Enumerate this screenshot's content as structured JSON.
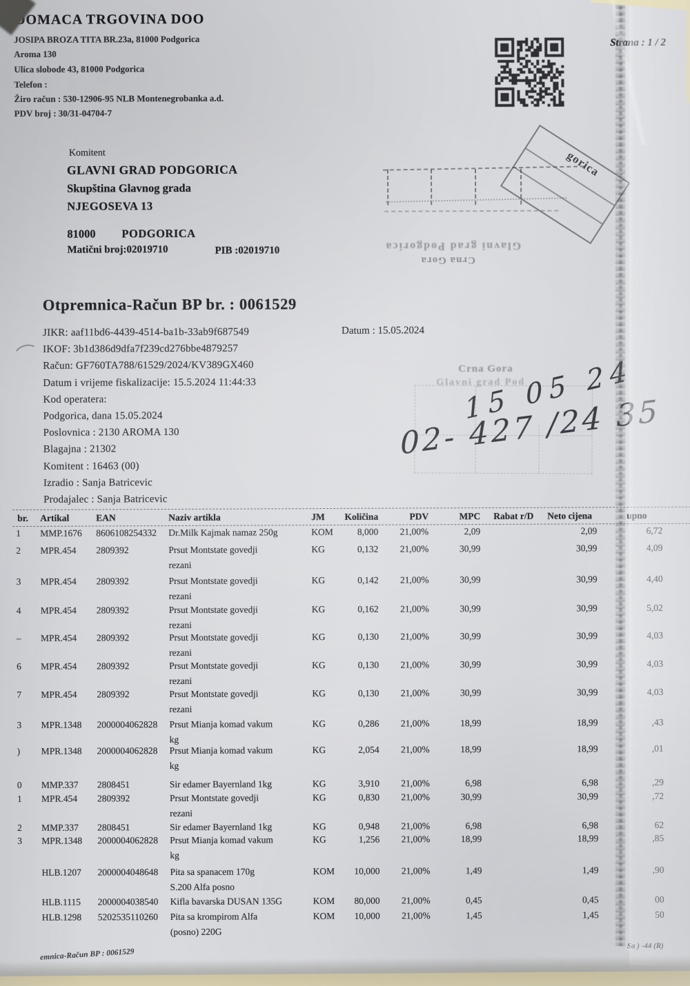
{
  "page": {
    "strana": "Strana : 1 / 2",
    "footer_left": "emnica-Račun BP : 0061529",
    "footer_right": "Sa  )  -44  (R)"
  },
  "supplier": {
    "name": "DOMACA TRGOVINA DOO",
    "address_line1": "JOSIPA BROZA TITA BR.23a,  81000  Podgorica",
    "address_line2": "Aroma 130",
    "address_line3": "Ulica slobode 43,  81000   Podgorica",
    "phone_label": "Telefon :",
    "bank_account": "Žiro račun : 530-12906-95 NLB Montenegrobanka a.d.",
    "vat_number": "PDV broj : 30/31-04704-7"
  },
  "customer": {
    "label": "Komitent",
    "name": "GLAVNI GRAD PODGORICA",
    "department": "Skupština Glavnog grada",
    "street": "NJEGOSEVA 13",
    "postal_code": "81000",
    "city": "PODGORICA",
    "maticni_broj": "Matični broj:02019710",
    "pib": "PIB :02019710"
  },
  "document": {
    "title": "Otpremnica-Račun BP br. : 0061529",
    "date_line": "Datum : 15.05.2024",
    "lines": [
      "JIKR: aaf11bd6-4439-4514-ba1b-33ab9f687549",
      "IKOF: 3b1d386d9dfa7f239cd276bbe4879257",
      "Račun: GF760TA788/61529/2024/KV389GX460",
      "Datum i vrijeme fiskalizacije: 15.5.2024 11:44:33",
      "Kod operatera:",
      "Podgorica, dana 15.05.2024",
      "Poslovnica : 2130 AROMA 130",
      "Blagajna : 21302",
      "Komitent : 16463  (00)",
      "Izradio : Sanja Batricevic",
      "Prodajalec : Sanja Batricevic"
    ]
  },
  "stamps": {
    "received_rotated_text": "gorica",
    "received_flipped_line1": "Glavni grad  Podgorica",
    "received_flipped_line2": "Crna Gora",
    "second_line1": "Crna Gora",
    "second_line2": "Glavni grad  Pod",
    "handwriting_line1": "15 05 24",
    "handwriting_line2": "02- 427 /24 35"
  },
  "table": {
    "headers": [
      "br.",
      "Artikal",
      "EAN",
      "Naziv artikla",
      "JM",
      "Količina",
      "PDV",
      "MPC",
      "Rabat  r/D",
      "Neto cijena",
      "upno"
    ],
    "rows": [
      {
        "br": "1",
        "artikal": "MMP.1676",
        "ean": "8606108254332",
        "naziv": "Dr.Milk Kajmak namaz 250g",
        "naziv2": "",
        "jm": "KOM",
        "kolicina": "8,000",
        "pdv": "21,00%",
        "mpc": "2,09",
        "neto": "2,09",
        "ukupno": "6,72"
      },
      {
        "br": "2",
        "artikal": "MPR.454",
        "ean": "2809392",
        "naziv": "Prsut Montstate govedji",
        "naziv2": "rezani",
        "jm": "KG",
        "kolicina": "0,132",
        "pdv": "21,00%",
        "mpc": "30,99",
        "neto": "30,99",
        "ukupno": "4,09"
      },
      {
        "br": "3",
        "artikal": "MPR.454",
        "ean": "2809392",
        "naziv": "Prsut Montstate govedji",
        "naziv2": "rezani",
        "jm": "KG",
        "kolicina": "0,142",
        "pdv": "21,00%",
        "mpc": "30,99",
        "neto": "30,99",
        "ukupno": "4,40"
      },
      {
        "br": "4",
        "artikal": "MPR.454",
        "ean": "2809392",
        "naziv": "Prsut Montstate govedji",
        "naziv2": "rezani",
        "jm": "KG",
        "kolicina": "0,162",
        "pdv": "21,00%",
        "mpc": "30,99",
        "neto": "30,99",
        "ukupno": "5,02"
      },
      {
        "br": "–",
        "artikal": "MPR.454",
        "ean": "2809392",
        "naziv": "Prsut Montstate govedji",
        "naziv2": "rezani",
        "jm": "KG",
        "kolicina": "0,130",
        "pdv": "21,00%",
        "mpc": "30,99",
        "neto": "30,99",
        "ukupno": "4,03"
      },
      {
        "br": "6",
        "artikal": "MPR.454",
        "ean": "2809392",
        "naziv": "Prsut Montstate govedji",
        "naziv2": "rezani",
        "jm": "KG",
        "kolicina": "0,130",
        "pdv": "21,00%",
        "mpc": "30,99",
        "neto": "30,99",
        "ukupno": "4,03"
      },
      {
        "br": "7",
        "artikal": "MPR.454",
        "ean": "2809392",
        "naziv": "Prsut Montstate govedji",
        "naziv2": "rezani",
        "jm": "KG",
        "kolicina": "0,130",
        "pdv": "21,00%",
        "mpc": "30,99",
        "neto": "30,99",
        "ukupno": "4,03"
      },
      {
        "br": "3",
        "artikal": "MPR.1348",
        "ean": "2000004062828",
        "naziv": "Prsut Mianja komad vakum",
        "naziv2": "kg",
        "jm": "KG",
        "kolicina": "0,286",
        "pdv": "21,00%",
        "mpc": "18,99",
        "neto": "18,99",
        "ukupno": ",43"
      },
      {
        "br": ")",
        "artikal": "MPR.1348",
        "ean": "2000004062828",
        "naziv": "Prsut Mianja komad vakum",
        "naziv2": "kg",
        "jm": "KG",
        "kolicina": "2,054",
        "pdv": "21,00%",
        "mpc": "18,99",
        "neto": "18,99",
        "ukupno": ",01"
      },
      {
        "br": "0",
        "artikal": "MMP.337",
        "ean": "2808451",
        "naziv": "Sir edamer Bayernland 1kg",
        "naziv2": "",
        "jm": "KG",
        "kolicina": "3,910",
        "pdv": "21,00%",
        "mpc": "6,98",
        "neto": "6,98",
        "ukupno": ",29"
      },
      {
        "br": "1",
        "artikal": "MPR.454",
        "ean": "2809392",
        "naziv": "Prsut Montstate govedji",
        "naziv2": "rezani",
        "jm": "KG",
        "kolicina": "0,830",
        "pdv": "21,00%",
        "mpc": "30,99",
        "neto": "30,99",
        "ukupno": ",72"
      },
      {
        "br": "2",
        "artikal": "MMP.337",
        "ean": "2808451",
        "naziv": "Sir edamer Bayernland 1kg",
        "naziv2": "",
        "jm": "KG",
        "kolicina": "0,948",
        "pdv": "21,00%",
        "mpc": "6,98",
        "neto": "6,98",
        "ukupno": "62"
      },
      {
        "br": "3",
        "artikal": "MPR.1348",
        "ean": "2000004062828",
        "naziv": "Prsut Mianja komad vakum",
        "naziv2": "kg",
        "jm": "KG",
        "kolicina": "1,256",
        "pdv": "21,00%",
        "mpc": "18,99",
        "neto": "18,99",
        "ukupno": ",85"
      },
      {
        "br": "",
        "artikal": "HLB.1207",
        "ean": "2000004048648",
        "naziv": "Pita sa spanacem 170g",
        "naziv2": "S.200 Alfa posno",
        "jm": "KOM",
        "kolicina": "10,000",
        "pdv": "21,00%",
        "mpc": "1,49",
        "neto": "1,49",
        "ukupno": ",90"
      },
      {
        "br": "",
        "artikal": "HLB.1115",
        "ean": "2000004038540",
        "naziv": "Kifla bavarska DUSAN 135G",
        "naziv2": "",
        "jm": "KOM",
        "kolicina": "80,000",
        "pdv": "21,00%",
        "mpc": "0,45",
        "neto": "0,45",
        "ukupno": "00"
      },
      {
        "br": "",
        "artikal": "HLB.1298",
        "ean": "5202535110260",
        "naziv": "Pita sa krompirom Alfa",
        "naziv2": "(posno) 220G",
        "jm": "KOM",
        "kolicina": "10,000",
        "pdv": "21,00%",
        "mpc": "1,45",
        "neto": "1,45",
        "ukupno": "50"
      }
    ]
  }
}
